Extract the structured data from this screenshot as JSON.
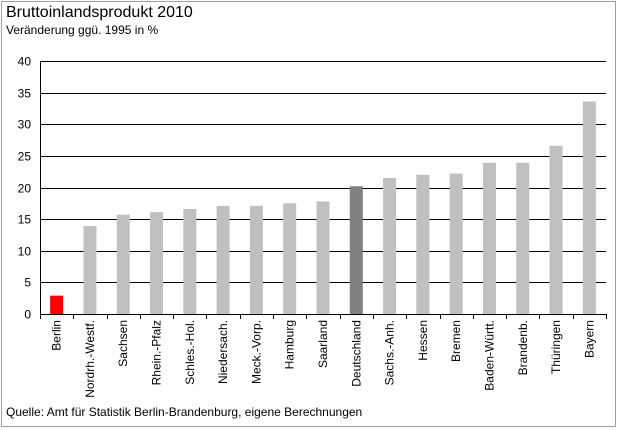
{
  "chart_data": {
    "type": "bar",
    "title": "Bruttoinlandsprodukt 2010",
    "subtitle": "Veränderung ggü. 1995 in %",
    "xlabel": "",
    "ylabel": "",
    "ylim": [
      0,
      40
    ],
    "yticks": [
      0,
      5,
      10,
      15,
      20,
      25,
      30,
      35,
      40
    ],
    "grid": true,
    "legend": "none",
    "categories": [
      "Berlin",
      "Nordrh.-Westf.",
      "Sachsen",
      "Rhein.-Pfalz",
      "Schles.-Hol.",
      "Niedersach.",
      "Meck.-Vorp.",
      "Hamburg",
      "Saarland",
      "Deutschland",
      "Sachs.-Anh.",
      "Hessen",
      "Bremen",
      "Baden-Württ.",
      "Brandenb.",
      "Thüringen",
      "Bayern"
    ],
    "values": [
      2.9,
      13.9,
      15.7,
      16.1,
      16.6,
      17.1,
      17.1,
      17.5,
      17.8,
      20.2,
      21.5,
      22.0,
      22.2,
      23.9,
      23.9,
      26.6,
      33.6
    ],
    "colors": {
      "default": "#c0c0c0",
      "highlight_berlin": "#ff0000",
      "highlight_deutschland": "#808080",
      "grid": "#000000",
      "frame": "#a0a0a0"
    },
    "bar_color_by_category": {
      "Berlin": "#ff0000",
      "Deutschland": "#808080"
    }
  },
  "footer": {
    "source": "Quelle: Amt  für Statistik Berlin-Brandenburg, eigene Berechnungen"
  }
}
